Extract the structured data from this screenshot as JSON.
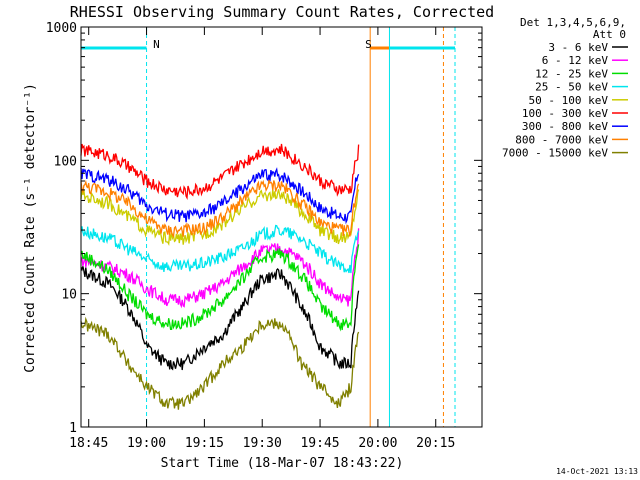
{
  "chart_data": {
    "type": "line",
    "title": "RHESSI Observing Summary Count Rates, Corrected",
    "xlabel": "Start Time (18-Mar-07 18:43:22)",
    "ylabel": "Corrected Count Rate (s⁻¹ detector⁻¹)",
    "yscale": "log",
    "ylim": [
      1,
      1000
    ],
    "xlim": [
      "18:43",
      "20:27"
    ],
    "x_ticks": [
      "18:45",
      "19:00",
      "19:15",
      "19:30",
      "19:45",
      "20:00",
      "20:15"
    ],
    "y_ticks": [
      "1",
      "10",
      "100",
      "1000"
    ],
    "legend_title": [
      "Det 1,3,4,5,6,9,",
      "Att 0"
    ],
    "legend_position": "right",
    "timestamp": "14-Oct-2021 13:13",
    "annotations": [
      {
        "text": "N",
        "at": "19:01",
        "color": "#00e5ee"
      },
      {
        "text": "S",
        "at": "19:56",
        "color": "#ff8000"
      }
    ],
    "bands": [
      {
        "name": "night",
        "color": "#00e5ee",
        "from": "18:43",
        "to": "19:00"
      },
      {
        "name": "saa",
        "color": "#ff8000",
        "from": "19:58",
        "to": "20:17"
      },
      {
        "name": "night2",
        "color": "#00e5ee",
        "from": "20:03",
        "to": "20:20"
      }
    ],
    "x": [
      "18:43",
      "18:50",
      "18:55",
      "19:00",
      "19:05",
      "19:10",
      "19:15",
      "19:20",
      "19:25",
      "19:30",
      "19:35",
      "19:40",
      "19:45",
      "19:50",
      "19:53",
      "19:55"
    ],
    "series": [
      {
        "name": "3 - 6 keV",
        "color": "#000000",
        "values": [
          15,
          12,
          8,
          4,
          3,
          3,
          4,
          5,
          8,
          13,
          14,
          8,
          4,
          3,
          3,
          10
        ]
      },
      {
        "name": "6 - 12 keV",
        "color": "#ff00ff",
        "values": [
          18,
          16,
          14,
          11,
          9,
          9,
          10,
          12,
          16,
          21,
          22,
          18,
          12,
          9,
          9,
          28
        ]
      },
      {
        "name": "12 - 25 keV",
        "color": "#00dd00",
        "values": [
          20,
          15,
          10,
          7,
          6,
          6,
          7,
          9,
          13,
          19,
          20,
          14,
          8,
          6,
          6,
          25
        ]
      },
      {
        "name": "25 - 50 keV",
        "color": "#00e5ee",
        "values": [
          30,
          26,
          22,
          18,
          16,
          16,
          17,
          19,
          22,
          28,
          30,
          26,
          20,
          16,
          16,
          30
        ]
      },
      {
        "name": "50 - 100 keV",
        "color": "#cccc00",
        "values": [
          55,
          48,
          38,
          30,
          26,
          26,
          28,
          34,
          44,
          55,
          55,
          42,
          30,
          26,
          27,
          58
        ]
      },
      {
        "name": "100 - 300 keV",
        "color": "#ff0000",
        "values": [
          120,
          110,
          90,
          70,
          60,
          58,
          62,
          75,
          95,
          120,
          120,
          95,
          70,
          60,
          60,
          120
        ]
      },
      {
        "name": "300 - 800 keV",
        "color": "#0000ff",
        "values": [
          80,
          72,
          60,
          46,
          40,
          38,
          40,
          48,
          62,
          78,
          78,
          60,
          44,
          38,
          38,
          85
        ]
      },
      {
        "name": "800 - 7000 keV",
        "color": "#ff8000",
        "values": [
          65,
          58,
          48,
          36,
          30,
          30,
          31,
          38,
          50,
          65,
          65,
          48,
          34,
          30,
          30,
          68
        ]
      },
      {
        "name": "7000 - 15000 keV",
        "color": "#808000",
        "values": [
          6,
          5,
          3,
          2,
          1.5,
          1.5,
          2,
          3,
          4,
          6,
          6,
          3,
          2,
          1.5,
          2,
          5
        ]
      }
    ]
  }
}
